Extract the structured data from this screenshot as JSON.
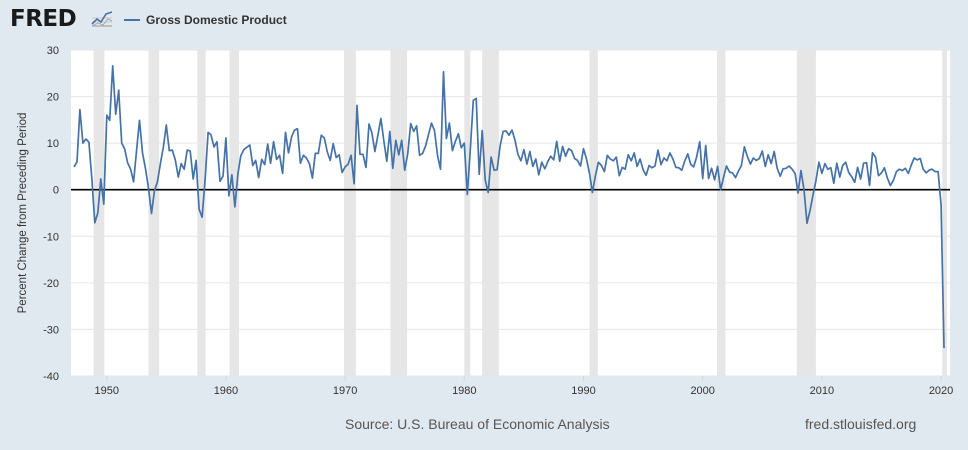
{
  "header": {
    "logo_text": "FRED",
    "logo_icon": "chart-line-icon",
    "series_label": "Gross Domestic Product"
  },
  "footer": {
    "source": "Source: U.S. Bureau of Economic Analysis",
    "site": "fred.stlouisfed.org"
  },
  "colors": {
    "line": "#4572a7",
    "recession": "#e6e6e6",
    "background": "#e1e9f0",
    "plot_bg": "#ffffff"
  },
  "chart_data": {
    "type": "line",
    "title": "",
    "series_name": "Gross Domestic Product",
    "ylabel": "Percent Change from Preceding Period",
    "xlabel": "",
    "xlim": [
      1947.0,
      2020.75
    ],
    "ylim": [
      -40,
      30
    ],
    "yticks": [
      30,
      20,
      10,
      0,
      -10,
      -20,
      -30,
      -40
    ],
    "xticks": [
      1950,
      1960,
      1970,
      1980,
      1990,
      2000,
      2010,
      2020
    ],
    "grid": "horizontal",
    "zero_line": true,
    "recessions": [
      [
        1948.9,
        1949.8
      ],
      [
        1953.5,
        1954.4
      ],
      [
        1957.6,
        1958.3
      ],
      [
        1960.3,
        1961.1
      ],
      [
        1969.9,
        1970.9
      ],
      [
        1973.8,
        1975.2
      ],
      [
        1980.0,
        1980.5
      ],
      [
        1981.5,
        1982.9
      ],
      [
        1990.5,
        1991.2
      ],
      [
        2001.2,
        2001.9
      ],
      [
        2007.9,
        2009.5
      ],
      [
        2020.1,
        2020.5
      ]
    ],
    "points": [
      [
        1947.25,
        4.9
      ],
      [
        1947.5,
        6.0
      ],
      [
        1947.75,
        17.2
      ],
      [
        1948.0,
        10.0
      ],
      [
        1948.25,
        10.9
      ],
      [
        1948.5,
        10.2
      ],
      [
        1948.75,
        2.2
      ],
      [
        1949.0,
        -7.1
      ],
      [
        1949.25,
        -5.0
      ],
      [
        1949.5,
        2.3
      ],
      [
        1949.75,
        -3.1
      ],
      [
        1950.0,
        16.0
      ],
      [
        1950.25,
        14.9
      ],
      [
        1950.5,
        26.6
      ],
      [
        1950.75,
        16.2
      ],
      [
        1951.0,
        21.4
      ],
      [
        1951.25,
        10.0
      ],
      [
        1951.5,
        8.8
      ],
      [
        1951.75,
        5.8
      ],
      [
        1952.0,
        4.4
      ],
      [
        1952.25,
        1.7
      ],
      [
        1952.5,
        8.5
      ],
      [
        1952.75,
        14.9
      ],
      [
        1953.0,
        7.9
      ],
      [
        1953.25,
        4.5
      ],
      [
        1953.5,
        0.3
      ],
      [
        1953.75,
        -5.1
      ],
      [
        1954.0,
        -0.3
      ],
      [
        1954.25,
        1.7
      ],
      [
        1954.5,
        5.6
      ],
      [
        1954.75,
        9.2
      ],
      [
        1955.0,
        13.9
      ],
      [
        1955.25,
        8.4
      ],
      [
        1955.5,
        8.5
      ],
      [
        1955.75,
        6.4
      ],
      [
        1956.0,
        2.7
      ],
      [
        1956.25,
        5.6
      ],
      [
        1956.5,
        4.4
      ],
      [
        1956.75,
        8.5
      ],
      [
        1957.0,
        8.3
      ],
      [
        1957.25,
        2.3
      ],
      [
        1957.5,
        6.3
      ],
      [
        1957.75,
        -4.2
      ],
      [
        1958.0,
        -5.9
      ],
      [
        1958.25,
        2.1
      ],
      [
        1958.5,
        12.3
      ],
      [
        1958.75,
        11.8
      ],
      [
        1959.0,
        9.2
      ],
      [
        1959.25,
        10.3
      ],
      [
        1959.5,
        1.8
      ],
      [
        1959.75,
        2.9
      ],
      [
        1960.0,
        11.1
      ],
      [
        1960.25,
        -1.3
      ],
      [
        1960.5,
        3.2
      ],
      [
        1960.75,
        -3.7
      ],
      [
        1961.0,
        3.4
      ],
      [
        1961.25,
        7.3
      ],
      [
        1961.5,
        8.6
      ],
      [
        1961.75,
        9.1
      ],
      [
        1962.0,
        9.6
      ],
      [
        1962.25,
        5.2
      ],
      [
        1962.5,
        6.3
      ],
      [
        1962.75,
        2.6
      ],
      [
        1963.0,
        6.5
      ],
      [
        1963.25,
        5.4
      ],
      [
        1963.5,
        9.8
      ],
      [
        1963.75,
        5.7
      ],
      [
        1964.0,
        10.3
      ],
      [
        1964.25,
        6.5
      ],
      [
        1964.5,
        7.4
      ],
      [
        1964.75,
        3.5
      ],
      [
        1965.0,
        12.3
      ],
      [
        1965.25,
        7.9
      ],
      [
        1965.5,
        11.3
      ],
      [
        1965.75,
        12.8
      ],
      [
        1966.0,
        13.1
      ],
      [
        1966.25,
        5.7
      ],
      [
        1966.5,
        7.4
      ],
      [
        1966.75,
        6.8
      ],
      [
        1967.0,
        5.6
      ],
      [
        1967.25,
        2.5
      ],
      [
        1967.5,
        7.8
      ],
      [
        1967.75,
        7.8
      ],
      [
        1968.0,
        11.7
      ],
      [
        1968.25,
        11.1
      ],
      [
        1968.5,
        8.1
      ],
      [
        1968.75,
        6.3
      ],
      [
        1969.0,
        9.9
      ],
      [
        1969.25,
        6.9
      ],
      [
        1969.5,
        7.5
      ],
      [
        1969.75,
        3.7
      ],
      [
        1970.0,
        4.9
      ],
      [
        1970.25,
        5.5
      ],
      [
        1970.5,
        7.4
      ],
      [
        1970.75,
        1.3
      ],
      [
        1971.0,
        18.1
      ],
      [
        1971.25,
        7.6
      ],
      [
        1971.5,
        7.6
      ],
      [
        1971.75,
        4.8
      ],
      [
        1972.0,
        14.1
      ],
      [
        1972.25,
        12.2
      ],
      [
        1972.5,
        8.2
      ],
      [
        1972.75,
        11.7
      ],
      [
        1973.0,
        15.3
      ],
      [
        1973.25,
        10.4
      ],
      [
        1973.5,
        6.1
      ],
      [
        1973.75,
        12.5
      ],
      [
        1974.0,
        4.6
      ],
      [
        1974.25,
        10.6
      ],
      [
        1974.5,
        7.5
      ],
      [
        1974.75,
        10.6
      ],
      [
        1975.0,
        4.2
      ],
      [
        1975.25,
        7.7
      ],
      [
        1975.5,
        14.2
      ],
      [
        1975.75,
        12.5
      ],
      [
        1976.0,
        13.7
      ],
      [
        1976.25,
        7.4
      ],
      [
        1976.5,
        7.8
      ],
      [
        1976.75,
        9.4
      ],
      [
        1977.0,
        11.9
      ],
      [
        1977.25,
        14.3
      ],
      [
        1977.5,
        12.7
      ],
      [
        1977.75,
        7.4
      ],
      [
        1978.0,
        4.4
      ],
      [
        1978.25,
        25.3
      ],
      [
        1978.5,
        11.0
      ],
      [
        1978.75,
        14.3
      ],
      [
        1979.0,
        8.4
      ],
      [
        1979.25,
        10.4
      ],
      [
        1979.5,
        12.0
      ],
      [
        1979.75,
        9.0
      ],
      [
        1980.0,
        10.0
      ],
      [
        1980.25,
        -1.0
      ],
      [
        1980.5,
        8.6
      ],
      [
        1980.75,
        19.2
      ],
      [
        1981.0,
        19.6
      ],
      [
        1981.25,
        3.3
      ],
      [
        1981.5,
        12.7
      ],
      [
        1981.75,
        2.1
      ],
      [
        1982.0,
        -0.6
      ],
      [
        1982.25,
        7.0
      ],
      [
        1982.5,
        4.2
      ],
      [
        1982.75,
        4.3
      ],
      [
        1983.0,
        9.4
      ],
      [
        1983.25,
        12.5
      ],
      [
        1983.5,
        12.6
      ],
      [
        1983.75,
        11.7
      ],
      [
        1984.0,
        12.8
      ],
      [
        1984.25,
        10.6
      ],
      [
        1984.5,
        7.6
      ],
      [
        1984.75,
        6.2
      ],
      [
        1985.0,
        8.6
      ],
      [
        1985.25,
        5.5
      ],
      [
        1985.5,
        8.2
      ],
      [
        1985.75,
        5.0
      ],
      [
        1986.0,
        6.6
      ],
      [
        1986.25,
        3.2
      ],
      [
        1986.5,
        5.9
      ],
      [
        1986.75,
        4.5
      ],
      [
        1987.0,
        6.0
      ],
      [
        1987.25,
        7.2
      ],
      [
        1987.5,
        6.4
      ],
      [
        1987.75,
        10.4
      ],
      [
        1988.0,
        6.1
      ],
      [
        1988.25,
        9.3
      ],
      [
        1988.5,
        7.2
      ],
      [
        1988.75,
        8.8
      ],
      [
        1989.0,
        8.4
      ],
      [
        1989.25,
        6.7
      ],
      [
        1989.5,
        6.3
      ],
      [
        1989.75,
        5.1
      ],
      [
        1990.0,
        8.8
      ],
      [
        1990.25,
        6.6
      ],
      [
        1990.5,
        3.5
      ],
      [
        1990.75,
        -0.6
      ],
      [
        1991.0,
        3.0
      ],
      [
        1991.25,
        5.9
      ],
      [
        1991.5,
        5.2
      ],
      [
        1991.75,
        3.9
      ],
      [
        1992.0,
        7.4
      ],
      [
        1992.25,
        6.6
      ],
      [
        1992.5,
        6.2
      ],
      [
        1992.75,
        7.0
      ],
      [
        1993.0,
        3.0
      ],
      [
        1993.25,
        4.8
      ],
      [
        1993.5,
        4.4
      ],
      [
        1993.75,
        7.5
      ],
      [
        1994.0,
        6.2
      ],
      [
        1994.25,
        7.9
      ],
      [
        1994.5,
        5.0
      ],
      [
        1994.75,
        6.6
      ],
      [
        1995.0,
        4.3
      ],
      [
        1995.25,
        3.1
      ],
      [
        1995.5,
        5.2
      ],
      [
        1995.75,
        4.7
      ],
      [
        1996.0,
        5.1
      ],
      [
        1996.25,
        8.5
      ],
      [
        1996.5,
        5.4
      ],
      [
        1996.75,
        6.8
      ],
      [
        1997.0,
        6.2
      ],
      [
        1997.25,
        7.9
      ],
      [
        1997.5,
        6.6
      ],
      [
        1997.75,
        4.8
      ],
      [
        1998.0,
        4.7
      ],
      [
        1998.25,
        4.2
      ],
      [
        1998.5,
        6.2
      ],
      [
        1998.75,
        7.7
      ],
      [
        1999.0,
        5.4
      ],
      [
        1999.25,
        4.9
      ],
      [
        1999.5,
        7.1
      ],
      [
        1999.75,
        10.3
      ],
      [
        2000.0,
        2.4
      ],
      [
        2000.25,
        9.5
      ],
      [
        2000.5,
        2.4
      ],
      [
        2000.75,
        4.6
      ],
      [
        2001.0,
        2.1
      ],
      [
        2001.25,
        5.0
      ],
      [
        2001.5,
        0.0
      ],
      [
        2001.75,
        2.6
      ],
      [
        2002.0,
        5.1
      ],
      [
        2002.25,
        3.8
      ],
      [
        2002.5,
        3.6
      ],
      [
        2002.75,
        2.6
      ],
      [
        2003.0,
        4.0
      ],
      [
        2003.25,
        5.2
      ],
      [
        2003.5,
        9.2
      ],
      [
        2003.75,
        7.1
      ],
      [
        2004.0,
        5.5
      ],
      [
        2004.25,
        6.8
      ],
      [
        2004.5,
        6.3
      ],
      [
        2004.75,
        6.7
      ],
      [
        2005.0,
        8.3
      ],
      [
        2005.25,
        5.0
      ],
      [
        2005.5,
        7.5
      ],
      [
        2005.75,
        5.6
      ],
      [
        2006.0,
        8.2
      ],
      [
        2006.25,
        4.6
      ],
      [
        2006.5,
        2.9
      ],
      [
        2006.75,
        4.5
      ],
      [
        2007.0,
        4.6
      ],
      [
        2007.25,
        5.1
      ],
      [
        2007.5,
        4.4
      ],
      [
        2007.75,
        3.5
      ],
      [
        2008.0,
        -0.7
      ],
      [
        2008.25,
        4.1
      ],
      [
        2008.5,
        0.0
      ],
      [
        2008.75,
        -7.2
      ],
      [
        2009.0,
        -4.5
      ],
      [
        2009.25,
        -1.2
      ],
      [
        2009.5,
        1.9
      ],
      [
        2009.75,
        5.9
      ],
      [
        2010.0,
        3.5
      ],
      [
        2010.25,
        5.6
      ],
      [
        2010.5,
        4.4
      ],
      [
        2010.75,
        4.7
      ],
      [
        2011.0,
        1.4
      ],
      [
        2011.25,
        5.7
      ],
      [
        2011.5,
        2.7
      ],
      [
        2011.75,
        5.2
      ],
      [
        2012.0,
        5.9
      ],
      [
        2012.25,
        3.7
      ],
      [
        2012.5,
        2.8
      ],
      [
        2012.75,
        1.6
      ],
      [
        2013.0,
        4.8
      ],
      [
        2013.25,
        2.3
      ],
      [
        2013.5,
        5.7
      ],
      [
        2013.75,
        5.8
      ],
      [
        2014.0,
        0.9
      ],
      [
        2014.25,
        7.9
      ],
      [
        2014.5,
        7.0
      ],
      [
        2014.75,
        3.0
      ],
      [
        2015.0,
        3.6
      ],
      [
        2015.25,
        4.7
      ],
      [
        2015.5,
        2.5
      ],
      [
        2015.75,
        0.9
      ],
      [
        2016.0,
        2.0
      ],
      [
        2016.25,
        3.9
      ],
      [
        2016.5,
        4.4
      ],
      [
        2016.75,
        4.1
      ],
      [
        2017.0,
        4.6
      ],
      [
        2017.25,
        3.5
      ],
      [
        2017.5,
        5.3
      ],
      [
        2017.75,
        6.8
      ],
      [
        2018.0,
        6.4
      ],
      [
        2018.25,
        6.7
      ],
      [
        2018.5,
        4.4
      ],
      [
        2018.75,
        3.6
      ],
      [
        2019.0,
        4.2
      ],
      [
        2019.25,
        4.4
      ],
      [
        2019.5,
        3.9
      ],
      [
        2019.75,
        3.9
      ],
      [
        2020.0,
        -3.4
      ],
      [
        2020.25,
        -34.0
      ]
    ]
  }
}
